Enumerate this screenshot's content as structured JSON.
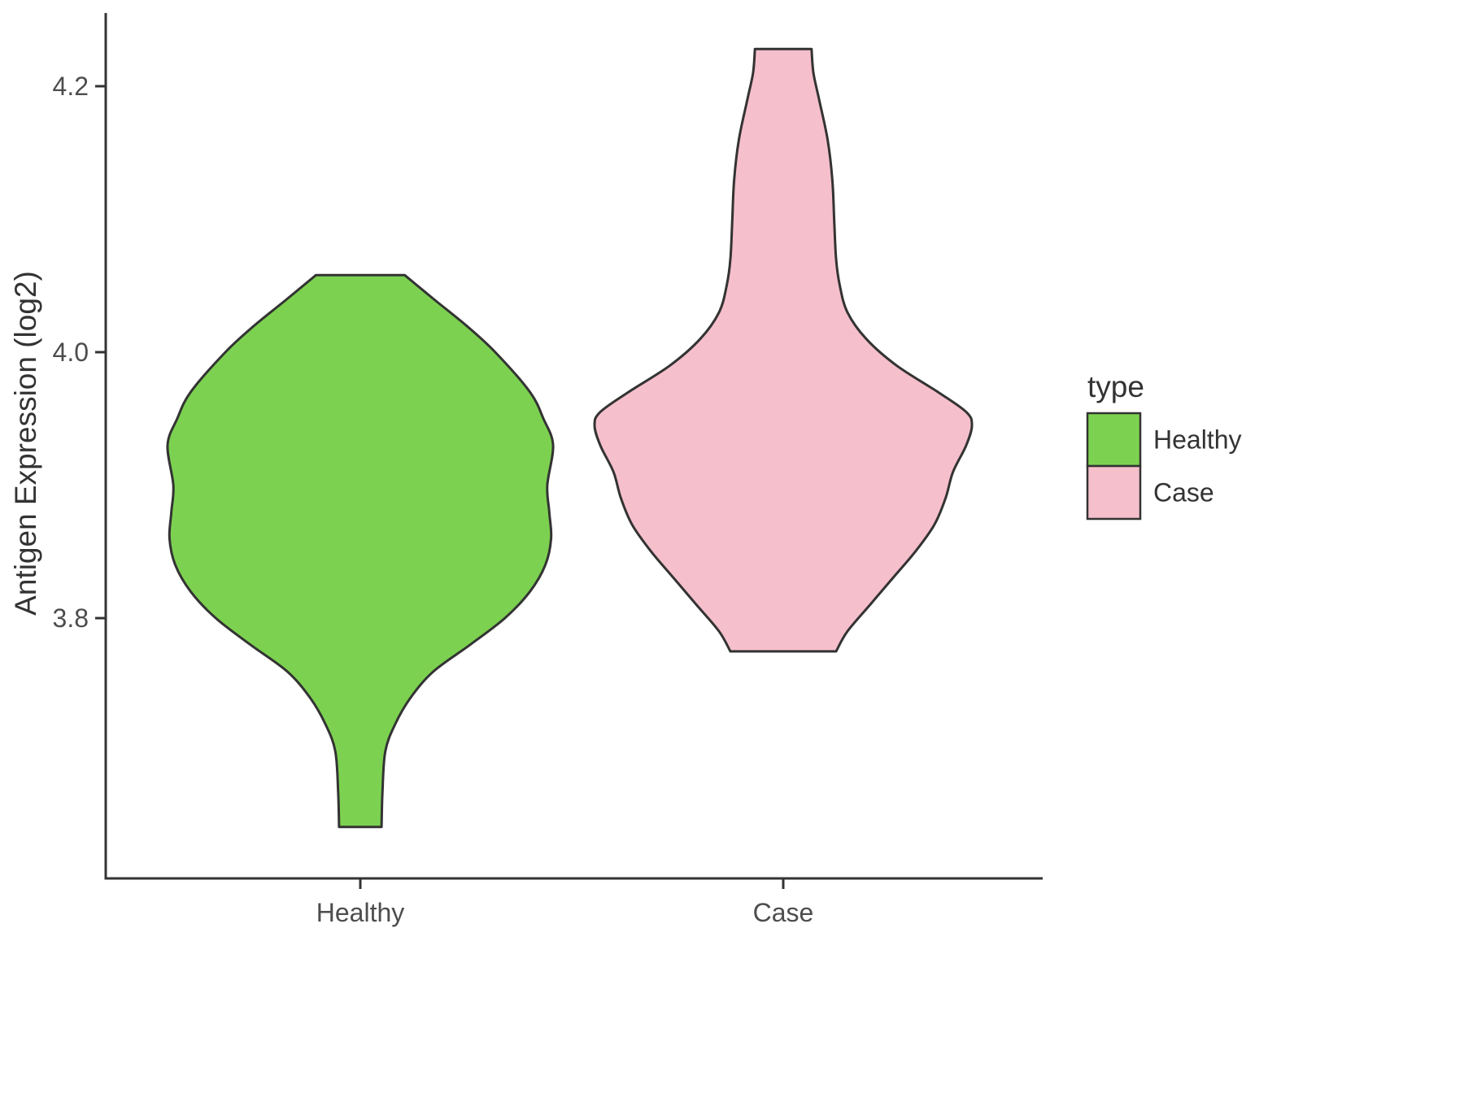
{
  "chart_data": {
    "type": "violin",
    "title": "",
    "xlabel": "",
    "ylabel": "Antigen Expression (log2)",
    "ylim": [
      3.6,
      4.26
    ],
    "yticks": [
      "3.8",
      "4.0",
      "4.2"
    ],
    "ytick_values": [
      3.8,
      4.0,
      4.2
    ],
    "categories": [
      "Healthy",
      "Case"
    ],
    "grid": "off",
    "legend": {
      "title": "type",
      "position": "right",
      "entries": [
        {
          "label": "Healthy",
          "color": "#7CD250"
        },
        {
          "label": "Case",
          "color": "#F5BFCB"
        }
      ]
    },
    "colors": {
      "healthy_fill": "#7CD250",
      "case_fill": "#F5BFCB",
      "outline": "#333333",
      "axis_line": "#333333",
      "tick_label": "#4D4D4D",
      "axis_title": "#333333"
    },
    "series": [
      {
        "name": "Healthy",
        "fill": "#7CD250",
        "value_range": [
          3.643,
          4.058
        ],
        "density_profile": [
          [
            4.058,
            0.23
          ],
          [
            4.04,
            0.38
          ],
          [
            4.02,
            0.55
          ],
          [
            4.0,
            0.7
          ],
          [
            3.97,
            0.88
          ],
          [
            3.95,
            0.95
          ],
          [
            3.93,
            1.0
          ],
          [
            3.9,
            0.97
          ],
          [
            3.88,
            0.98
          ],
          [
            3.86,
            0.99
          ],
          [
            3.84,
            0.96
          ],
          [
            3.82,
            0.88
          ],
          [
            3.8,
            0.75
          ],
          [
            3.78,
            0.57
          ],
          [
            3.76,
            0.38
          ],
          [
            3.74,
            0.26
          ],
          [
            3.72,
            0.18
          ],
          [
            3.7,
            0.13
          ],
          [
            3.67,
            0.115
          ],
          [
            3.643,
            0.11
          ]
        ]
      },
      {
        "name": "Case",
        "fill": "#F5BFCB",
        "value_range": [
          3.775,
          4.228
        ],
        "density_profile": [
          [
            4.228,
            0.15
          ],
          [
            4.21,
            0.16
          ],
          [
            4.19,
            0.19
          ],
          [
            4.16,
            0.235
          ],
          [
            4.13,
            0.26
          ],
          [
            4.1,
            0.27
          ],
          [
            4.07,
            0.28
          ],
          [
            4.05,
            0.3
          ],
          [
            4.03,
            0.34
          ],
          [
            4.01,
            0.44
          ],
          [
            3.99,
            0.6
          ],
          [
            3.97,
            0.82
          ],
          [
            3.955,
            0.97
          ],
          [
            3.945,
            1.0
          ],
          [
            3.93,
            0.97
          ],
          [
            3.91,
            0.9
          ],
          [
            3.89,
            0.86
          ],
          [
            3.87,
            0.8
          ],
          [
            3.85,
            0.7
          ],
          [
            3.83,
            0.58
          ],
          [
            3.81,
            0.46
          ],
          [
            3.79,
            0.34
          ],
          [
            3.775,
            0.28
          ]
        ]
      }
    ]
  }
}
